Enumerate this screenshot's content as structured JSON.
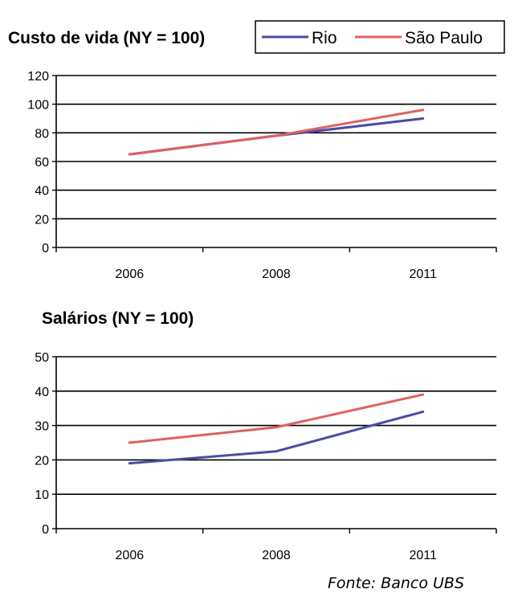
{
  "source_note": "Fonte: Banco UBS",
  "legend": [
    {
      "name": "Rio",
      "color": "#4b4ba6"
    },
    {
      "name": "São Paulo",
      "color": "#e06060"
    }
  ],
  "chart_data": [
    {
      "type": "line",
      "title": "Custo de vida (NY = 100)",
      "categories": [
        "2006",
        "2008",
        "2011"
      ],
      "series": [
        {
          "name": "Rio",
          "values": [
            65,
            78,
            90
          ]
        },
        {
          "name": "São Paulo",
          "values": [
            65,
            78,
            96
          ]
        }
      ],
      "ylim": [
        0,
        120
      ],
      "yticks": [
        0,
        20,
        40,
        60,
        80,
        100,
        120
      ],
      "grid": true,
      "legend_position": "top-right"
    },
    {
      "type": "line",
      "title": "Salários (NY = 100)",
      "categories": [
        "2006",
        "2008",
        "2011"
      ],
      "series": [
        {
          "name": "Rio",
          "values": [
            19,
            22.5,
            34
          ]
        },
        {
          "name": "São Paulo",
          "values": [
            25,
            29.5,
            39
          ]
        }
      ],
      "ylim": [
        0,
        50
      ],
      "yticks": [
        0,
        10,
        20,
        30,
        40,
        50
      ],
      "grid": true
    }
  ]
}
